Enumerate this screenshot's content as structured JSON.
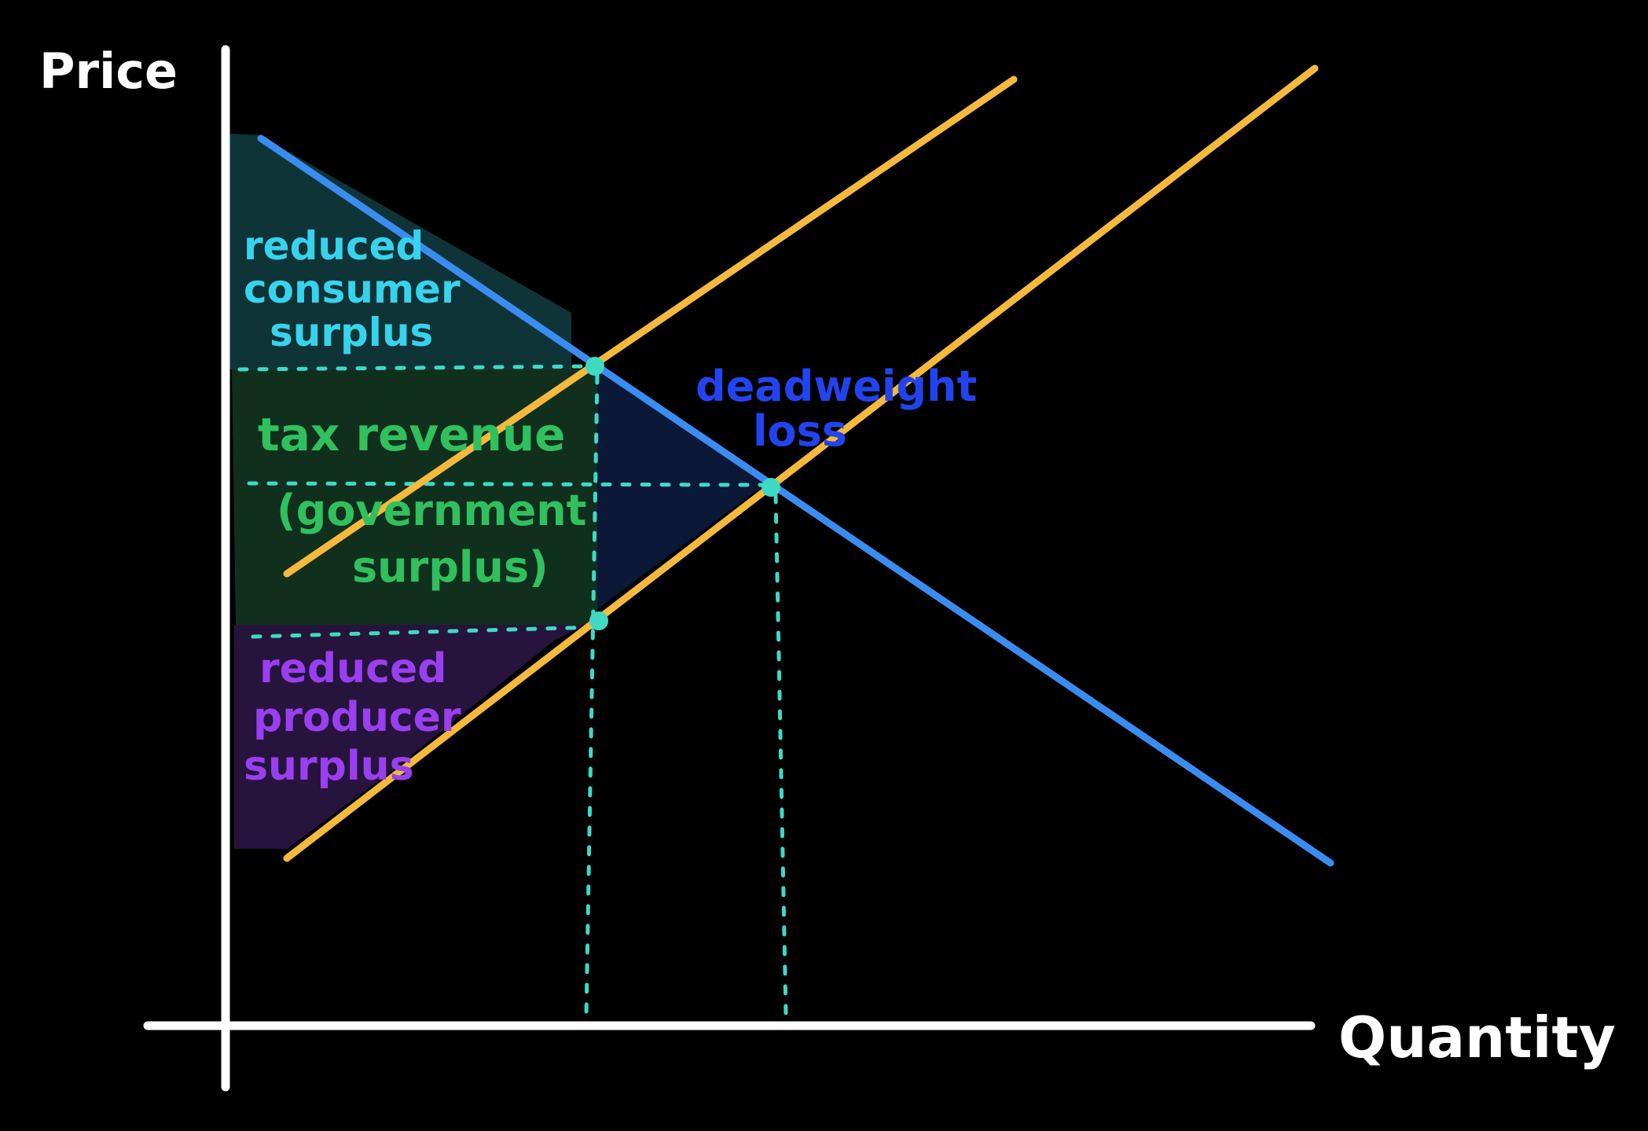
{
  "axes": {
    "y_label": "Price",
    "x_label": "Quantity"
  },
  "regions": {
    "consumer_surplus": [
      "reduced",
      "consumer",
      "surplus"
    ],
    "tax_revenue": [
      "tax revenue",
      "(government",
      "surplus)"
    ],
    "producer_surplus": [
      "reduced",
      "producer",
      "surplus"
    ],
    "deadweight_loss": [
      "deadweight",
      "loss"
    ]
  },
  "colors": {
    "background": "#000000",
    "axis": "#ffffff",
    "demand": "#3a8df0",
    "supply": "#f5b93c",
    "guide": "#3fd9c4",
    "consumer_fill": "#0f3438",
    "tax_fill": "#10301d",
    "producer_fill": "#26143d",
    "dwl_fill": "#0b1838",
    "consumer_text": "#37d3ec",
    "tax_text": "#30c05e",
    "producer_text": "#9a3ff0",
    "dwl_text": "#2244f0"
  }
}
